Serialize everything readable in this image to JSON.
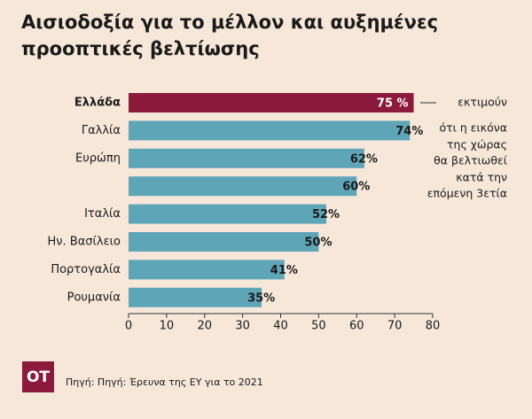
{
  "chart_data": {
    "type": "bar",
    "title": [
      "Αισιοδοξία για το μέλλον και αυξημένες",
      "προοπτικές βελτίωσης"
    ],
    "categories": [
      "Ελλάδα",
      "Γαλλία",
      "Ευρώπη",
      null,
      "Ιταλία",
      "Ην. Βασίλειο",
      "Πορτογαλία",
      "Ρουμανία"
    ],
    "values": [
      75,
      74,
      62,
      60,
      52,
      50,
      41,
      35
    ],
    "value_labels": [
      "75 %",
      "74%",
      "62%",
      "60%",
      "52%",
      "50%",
      "41%",
      "35%"
    ],
    "colors": [
      "#8c1a3c",
      "#5fa5b8",
      "#5fa5b8",
      "#5fa5b8",
      "#5fa5b8",
      "#5fa5b8",
      "#5fa5b8",
      "#5fa5b8"
    ],
    "xlim": [
      0,
      80
    ],
    "xticks": [
      0,
      10,
      20,
      30,
      40,
      50,
      60,
      70,
      80
    ],
    "annotation": [
      "εκτιμούν",
      "ότι η εικόνα",
      "της χώρας",
      "θα βελτιωθεί",
      "κατά την",
      "επόμενη 3ετία"
    ],
    "logo": "ΟΤ",
    "source": "Πηγή: Πηγή: Έρευνα της ΕΥ για το 2021"
  }
}
